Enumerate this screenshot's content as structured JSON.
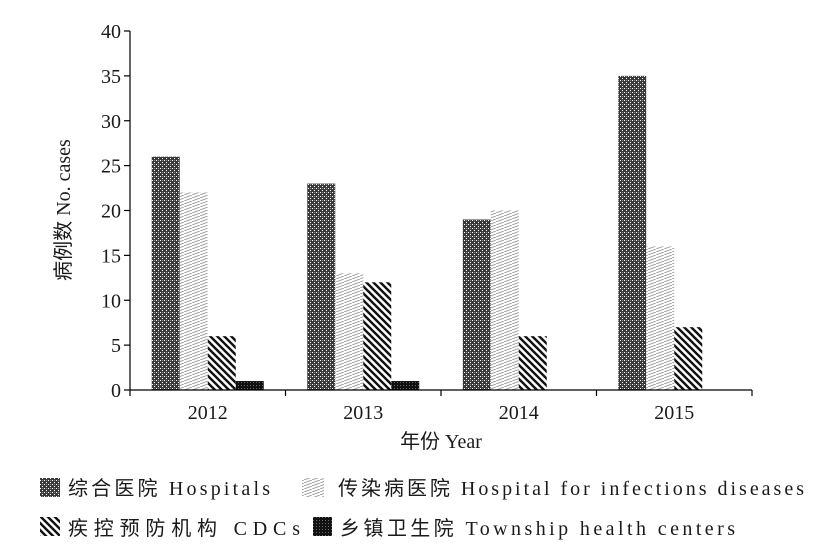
{
  "chart_data": {
    "type": "bar",
    "categories": [
      "2012",
      "2013",
      "2014",
      "2015"
    ],
    "series": [
      {
        "name": "综合医院 Hospitals",
        "values": [
          26,
          23,
          19,
          35
        ],
        "pattern": "dense-checker"
      },
      {
        "name": "传染病医院 Hospital for infections diseases",
        "values": [
          22,
          13,
          20,
          16
        ],
        "pattern": "diagonal-hatch-light"
      },
      {
        "name": "疾控预防机构 CDCs",
        "values": [
          6,
          12,
          6,
          7
        ],
        "pattern": "diagonal-stripes-dark"
      },
      {
        "name": "乡镇卫生院 Township health centers",
        "values": [
          1,
          1,
          0,
          0
        ],
        "pattern": "dense-crosshatch-dark"
      }
    ],
    "xlabel": "年份 Year",
    "ylabel": "病例数 No. cases",
    "ylim": [
      0,
      40
    ],
    "yticks": [
      0,
      5,
      10,
      15,
      20,
      25,
      30,
      35,
      40
    ],
    "grid": false,
    "legend_position": "bottom"
  }
}
